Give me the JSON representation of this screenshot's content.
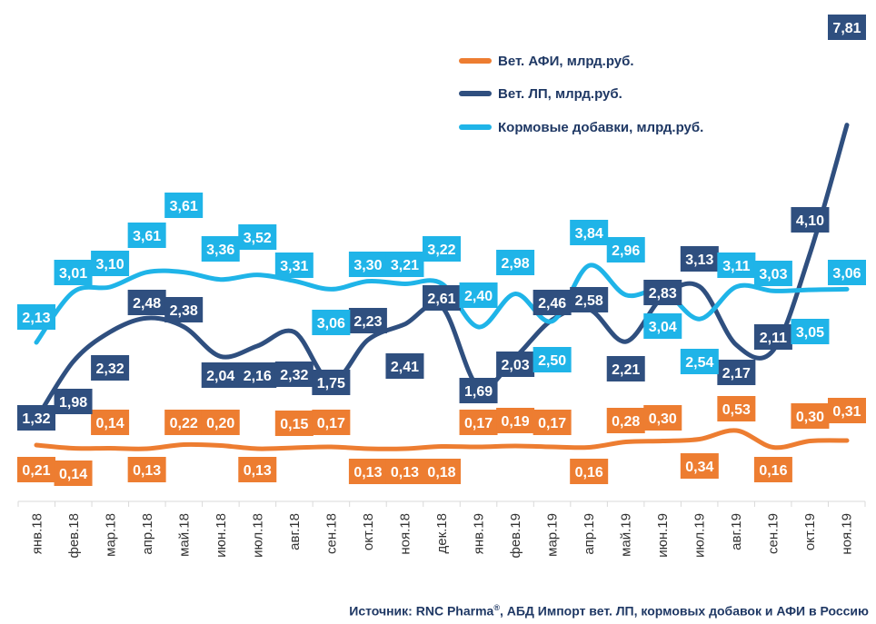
{
  "chart_data": {
    "type": "line",
    "categories": [
      "янв.18",
      "фев.18",
      "мар.18",
      "апр.18",
      "май.18",
      "июн.18",
      "июл.18",
      "авг.18",
      "сен.18",
      "окт.18",
      "ноя.18",
      "дек.18",
      "янв.19",
      "фев.19",
      "мар.19",
      "апр.19",
      "май.19",
      "июн.19",
      "июл.19",
      "авг.19",
      "сен.19",
      "окт.19",
      "ноя.19"
    ],
    "series": [
      {
        "name": "Вет. АФИ, млрд.руб.",
        "color": "#ed7d31",
        "values": [
          0.21,
          0.14,
          0.14,
          0.13,
          0.22,
          0.2,
          0.13,
          0.15,
          0.17,
          0.13,
          0.13,
          0.18,
          0.17,
          0.19,
          0.17,
          0.16,
          0.28,
          0.3,
          0.34,
          0.53,
          0.16,
          0.3,
          0.31
        ]
      },
      {
        "name": "Вет. ЛП, млрд.руб.",
        "color": "#2f4f7f",
        "values": [
          1.32,
          1.98,
          2.32,
          2.48,
          2.38,
          2.04,
          2.16,
          2.32,
          1.75,
          2.23,
          2.41,
          2.61,
          1.69,
          2.03,
          2.46,
          2.58,
          2.21,
          2.83,
          3.13,
          2.17,
          2.11,
          4.1,
          7.81
        ]
      },
      {
        "name": "Кормовые добавки, млрд.руб.",
        "color": "#1fb4e8",
        "values": [
          2.13,
          3.01,
          3.1,
          3.61,
          3.61,
          3.36,
          3.52,
          3.31,
          3.06,
          3.3,
          3.21,
          3.22,
          2.4,
          2.98,
          2.5,
          3.84,
          2.96,
          3.04,
          2.54,
          3.11,
          3.03,
          3.05,
          3.06
        ]
      }
    ],
    "legend_position": "top-right",
    "grid": false
  },
  "source_prefix": "Источник: RNC Pharma",
  "source_mark": "®",
  "source_suffix": ", АБД Импорт вет. ЛП, кормовых добавок и АФИ в Россию"
}
